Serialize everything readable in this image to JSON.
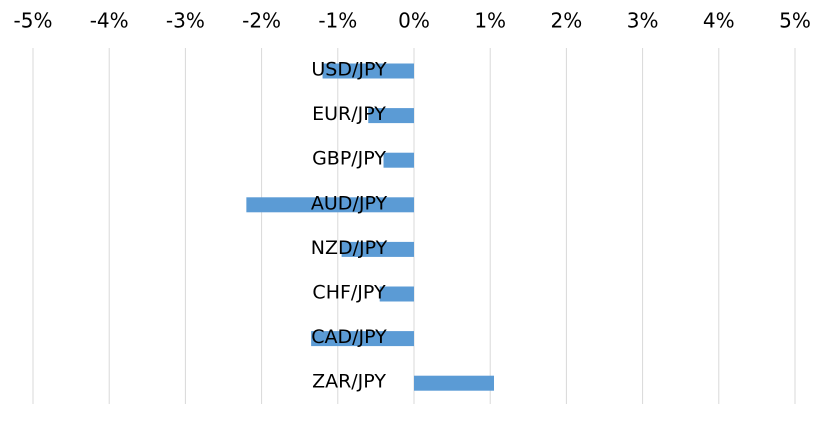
{
  "chart_data": {
    "type": "bar",
    "orientation": "horizontal",
    "categories": [
      "USD/JPY",
      "EUR/JPY",
      "GBP/JPY",
      "AUD/JPY",
      "NZD/JPY",
      "CHF/JPY",
      "CAD/JPY",
      "ZAR/JPY"
    ],
    "values": [
      -1.2,
      -0.6,
      -0.4,
      -2.2,
      -0.95,
      -0.45,
      -1.35,
      1.05
    ],
    "value_unit": "%",
    "xlim": [
      -5,
      5
    ],
    "x_ticks": [
      -5,
      -4,
      -3,
      -2,
      -1,
      0,
      1,
      2,
      3,
      4,
      5
    ],
    "x_tick_labels": [
      "-5%",
      "-4%",
      "-3%",
      "-2%",
      "-1%",
      "0%",
      "1%",
      "2%",
      "3%",
      "4%",
      "5%"
    ],
    "axis_position": "top",
    "grid": true,
    "legend": "none",
    "colors": {
      "bar": "#5b9bd5",
      "grid": "#d9d9d9",
      "text": "#000000"
    }
  }
}
